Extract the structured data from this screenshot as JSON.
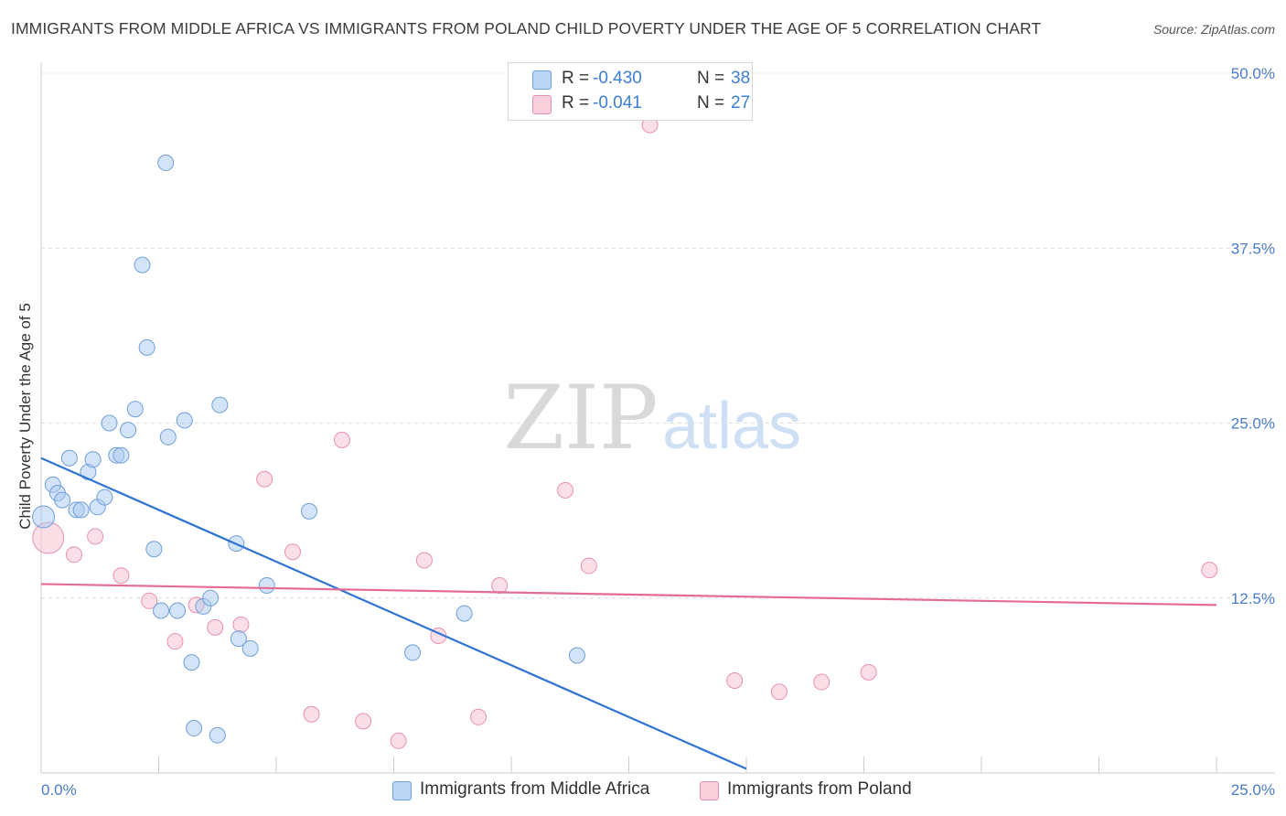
{
  "title": "IMMIGRANTS FROM MIDDLE AFRICA VS IMMIGRANTS FROM POLAND CHILD POVERTY UNDER THE AGE OF 5 CORRELATION CHART",
  "source": "Source: ZipAtlas.com",
  "watermark": {
    "zip": "ZIP",
    "atlas": "atlas"
  },
  "legend": {
    "rows": [
      {
        "r_label": "R =",
        "r_value": "-0.430",
        "n_label": "N =",
        "n_value": "38"
      },
      {
        "r_label": "R =",
        "r_value": "-0.041",
        "n_label": "N =",
        "n_value": "27"
      }
    ]
  },
  "bottom_legend": [
    "Immigrants from Middle Africa",
    "Immigrants from Poland"
  ],
  "chart_data": {
    "type": "scatter",
    "ylabel": "Child Poverty Under the Age of 5",
    "xlim": [
      0,
      25
    ],
    "ylim": [
      0,
      50
    ],
    "x_tick_labels": [
      "0.0%",
      "25.0%"
    ],
    "y_tick_values": [
      12.5,
      25.0,
      37.5,
      50.0
    ],
    "y_tick_labels": [
      "12.5%",
      "25.0%",
      "37.5%",
      "50.0%"
    ],
    "grid": true,
    "legend_placement": "top-center",
    "colors": {
      "blue_fill": "#a9c9f2",
      "blue_stroke": "#6f9fd8",
      "blue_line": "#2f74d0",
      "pink_fill": "#f7bfd0",
      "pink_stroke": "#e691ad",
      "pink_line": "#e36b95"
    },
    "series": [
      {
        "name": "Immigrants from Middle Africa",
        "color": "blue",
        "points": [
          [
            0.05,
            18.3
          ],
          [
            0.25,
            20.6
          ],
          [
            0.35,
            20.0
          ],
          [
            0.45,
            19.5
          ],
          [
            0.6,
            22.5
          ],
          [
            0.75,
            18.8
          ],
          [
            0.85,
            18.8
          ],
          [
            1.0,
            21.5
          ],
          [
            1.1,
            22.4
          ],
          [
            1.2,
            19.0
          ],
          [
            1.35,
            19.7
          ],
          [
            1.45,
            25.0
          ],
          [
            1.6,
            22.7
          ],
          [
            1.7,
            22.7
          ],
          [
            1.85,
            24.5
          ],
          [
            2.0,
            26.0
          ],
          [
            2.15,
            36.3
          ],
          [
            2.25,
            30.4
          ],
          [
            2.4,
            16.0
          ],
          [
            2.55,
            11.6
          ],
          [
            2.65,
            43.6
          ],
          [
            2.7,
            24.0
          ],
          [
            2.9,
            11.6
          ],
          [
            3.05,
            25.2
          ],
          [
            3.2,
            7.9
          ],
          [
            3.25,
            3.2
          ],
          [
            3.45,
            11.9
          ],
          [
            3.6,
            12.5
          ],
          [
            3.75,
            2.7
          ],
          [
            3.8,
            26.3
          ],
          [
            4.15,
            16.4
          ],
          [
            4.2,
            9.6
          ],
          [
            4.45,
            8.9
          ],
          [
            4.8,
            13.4
          ],
          [
            5.7,
            18.7
          ],
          [
            7.9,
            8.6
          ],
          [
            9.0,
            11.4
          ],
          [
            11.4,
            8.4
          ]
        ],
        "trend": {
          "x": [
            0,
            15.0
          ],
          "y": [
            22.5,
            0.3
          ]
        }
      },
      {
        "name": "Immigrants from Poland",
        "color": "pink",
        "points": [
          [
            0.15,
            16.8
          ],
          [
            0.7,
            15.6
          ],
          [
            1.15,
            16.9
          ],
          [
            1.7,
            14.1
          ],
          [
            2.3,
            12.3
          ],
          [
            2.85,
            9.4
          ],
          [
            3.3,
            12.0
          ],
          [
            3.7,
            10.4
          ],
          [
            4.25,
            10.6
          ],
          [
            4.75,
            21.0
          ],
          [
            5.35,
            15.8
          ],
          [
            5.75,
            4.2
          ],
          [
            6.4,
            23.8
          ],
          [
            6.85,
            3.7
          ],
          [
            7.6,
            2.3
          ],
          [
            8.15,
            15.2
          ],
          [
            8.45,
            9.8
          ],
          [
            9.3,
            4.0
          ],
          [
            9.75,
            13.4
          ],
          [
            11.15,
            20.2
          ],
          [
            11.65,
            14.8
          ],
          [
            12.95,
            46.3
          ],
          [
            14.75,
            6.6
          ],
          [
            15.7,
            5.8
          ],
          [
            16.6,
            6.5
          ],
          [
            17.6,
            7.2
          ],
          [
            24.85,
            14.5
          ]
        ],
        "trend": {
          "x": [
            0,
            25.0
          ],
          "y": [
            13.5,
            12.0
          ]
        }
      }
    ]
  }
}
